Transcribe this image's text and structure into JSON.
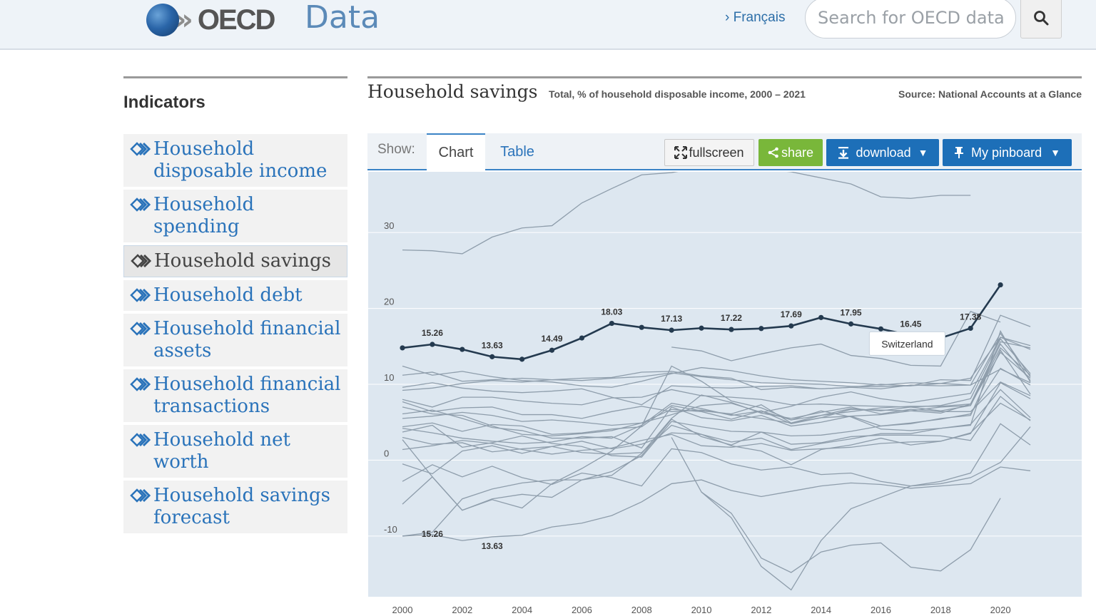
{
  "header": {
    "logo_text": "OECD",
    "section_title": "Data",
    "language_link": "› Français",
    "search_placeholder": "Search for OECD data"
  },
  "sidebar": {
    "heading": "Indicators",
    "items": [
      {
        "label": "Household disposable income",
        "active": false
      },
      {
        "label": "Household spending",
        "active": false
      },
      {
        "label": "Household savings",
        "active": true
      },
      {
        "label": "Household debt",
        "active": false
      },
      {
        "label": "Household financial assets",
        "active": false
      },
      {
        "label": "Household financial transactions",
        "active": false
      },
      {
        "label": "Household net worth",
        "active": false
      },
      {
        "label": "Household savings forecast",
        "active": false
      }
    ]
  },
  "main": {
    "title": "Household savings",
    "subtitle": "Total, % of household disposable income, 2000 – 2021",
    "source": "Source: National Accounts at a Glance",
    "toolbar": {
      "show_label": "Show:",
      "tabs": [
        {
          "label": "Chart",
          "active": true
        },
        {
          "label": "Table",
          "active": false
        }
      ],
      "fullscreen_label": "fullscreen",
      "share_label": "share",
      "download_label": "download",
      "pinboard_label": "My pinboard"
    },
    "tooltip": "Switzerland"
  },
  "colors": {
    "accent": "#1d6fb8",
    "share_green": "#79b73a",
    "chart_background": "#dde7f0",
    "highlight_line": "#243a4f",
    "background_lines": "#8e9dab"
  },
  "chart_data": {
    "type": "line",
    "ylim": [
      -18,
      38
    ],
    "xlim": [
      2000,
      2021
    ],
    "x_ticks": [
      2000,
      2002,
      2004,
      2006,
      2008,
      2010,
      2012,
      2014,
      2016,
      2018,
      2020
    ],
    "y_ticks": [
      -10,
      0,
      10,
      20,
      30
    ],
    "grid": true,
    "highlight": {
      "name": "Switzerland",
      "x": [
        2000,
        2001,
        2002,
        2003,
        2004,
        2005,
        2006,
        2007,
        2008,
        2009,
        2010,
        2011,
        2012,
        2013,
        2014,
        2015,
        2016,
        2017,
        2018,
        2019,
        2020
      ],
      "values": [
        14.8,
        15.26,
        14.6,
        13.63,
        13.3,
        14.49,
        16.1,
        18.03,
        17.5,
        17.13,
        17.4,
        17.22,
        17.35,
        17.69,
        18.8,
        17.95,
        17.3,
        16.45,
        16.1,
        17.38,
        23.1
      ],
      "labels": [
        {
          "x": 2001,
          "text": "15.26"
        },
        {
          "x": 2003,
          "text": "13.63"
        },
        {
          "x": 2005,
          "text": "14.49"
        },
        {
          "x": 2007,
          "text": "18.03"
        },
        {
          "x": 2009,
          "text": "17.13"
        },
        {
          "x": 2011,
          "text": "17.22"
        },
        {
          "x": 2013,
          "text": "17.69"
        },
        {
          "x": 2015,
          "text": "17.95"
        },
        {
          "x": 2017,
          "text": "16.45"
        },
        {
          "x": 2019,
          "text": "17.38"
        }
      ],
      "extra_labels": [
        {
          "x": 2001,
          "y": -10.1,
          "text": "15.26"
        },
        {
          "x": 2003,
          "y": -11.7,
          "text": "13.63"
        }
      ]
    },
    "series": [
      {
        "x_start": 2000,
        "values": [
          27.7,
          27.6,
          27.2,
          29.4,
          30.6,
          30.9,
          33.9,
          35.8,
          37.6,
          37.9,
          38.6,
          38.2,
          38.4,
          38.0,
          37.2,
          36.4,
          34.7,
          34.5,
          34.9,
          34.9
        ]
      },
      {
        "x_start": 2000,
        "values": [
          4.2,
          3.6,
          2.9,
          2.5,
          2.2,
          2.4,
          3.1,
          2.9,
          4.6,
          7.5,
          6.8,
          5.9,
          6.5,
          5.3,
          5.9,
          6.4,
          6.9,
          7.1,
          7.1,
          7.4,
          15.6,
          14.8
        ]
      },
      {
        "x_start": 2000,
        "values": [
          5.5,
          5.8,
          6.3,
          5.9,
          5.1,
          5.3,
          5.0,
          4.6,
          4.9,
          6.0,
          7.2,
          7.5,
          6.3,
          7.1,
          8.3,
          9.0,
          8.1,
          7.6,
          8.2,
          8.8,
          16.2,
          14.6
        ]
      },
      {
        "x_start": 2000,
        "values": [
          9.2,
          9.5,
          10.1,
          10.5,
          10.3,
          10.6,
          10.5,
          10.8,
          11.0,
          11.5,
          11.0,
          10.6,
          10.2,
          10.1,
          10.0,
          9.7,
          9.7,
          9.8,
          10.6,
          10.5,
          19.1,
          17.6
        ]
      },
      {
        "x_start": 2000,
        "values": [
          11.2,
          11.6,
          10.4,
          10.6,
          10.8,
          10.6,
          10.8,
          10.9,
          11.6,
          11.7,
          11.1,
          10.8,
          9.3,
          9.6,
          9.4,
          9.6,
          10.0,
          9.8,
          10.1,
          10.8,
          16.2,
          15.1
        ]
      },
      {
        "x_start": 2000,
        "values": [
          7.7,
          6.4,
          6.9,
          7.0,
          6.0,
          6.0,
          5.5,
          6.4,
          7.1,
          6.4,
          6.6,
          6.0,
          5.5,
          4.9,
          5.6,
          6.7,
          6.6,
          6.5,
          7.0,
          7.2,
          14.8,
          11.2
        ]
      },
      {
        "x_start": 2000,
        "values": [
          8.0,
          7.0,
          8.3,
          8.3,
          7.8,
          7.5,
          7.3,
          8.2,
          8.3,
          9.3,
          8.5,
          8.3,
          8.0,
          7.3,
          7.4,
          7.2,
          7.1,
          7.0,
          6.5,
          7.2,
          15.3,
          10.5
        ]
      },
      {
        "x_start": 2000,
        "values": [
          3.0,
          2.1,
          2.3,
          1.1,
          1.5,
          1.8,
          2.5,
          1.5,
          2.1,
          3.6,
          3.4,
          2.4,
          2.9,
          1.4,
          2.2,
          2.8,
          3.5,
          3.5,
          4.2,
          4.7,
          9.3,
          5.6
        ]
      },
      {
        "x_start": 2000,
        "values": [
          -0.5,
          -1.8,
          1.2,
          1.9,
          0.9,
          1.8,
          1.0,
          0.8,
          1.0,
          4.6,
          3.4,
          1.9,
          1.2,
          -0.6,
          1.4,
          2.0,
          2.9,
          2.0,
          2.5,
          3.5,
          10.2,
          8.1
        ]
      },
      {
        "x_start": 2000,
        "values": [
          -5.8,
          -2.2,
          -6.6,
          -5.1,
          -4.5,
          -4.9,
          -2.6,
          -1.5,
          0.6,
          5.4,
          3.1,
          2.0,
          3.7,
          3.2,
          3.3,
          3.8,
          4.5,
          4.9,
          5.4,
          6.1,
          12.1,
          9.9
        ]
      },
      {
        "x_start": 2000,
        "values": [
          -2.8,
          -0.6,
          -2.2,
          -0.8,
          -2.3,
          -3.2,
          -1.7,
          -2.3,
          -3.4,
          1.5,
          1.0,
          -0.5,
          -1.3,
          -0.9,
          -1.9,
          -1.7,
          -2.8,
          -3.4,
          -2.8,
          -1.7,
          4.8,
          2.0
        ]
      },
      {
        "x_start": 2000,
        "values": [
          12.4,
          11.2,
          11.7,
          11.0,
          10.5,
          10.3,
          9.8,
          9.6,
          10.4,
          11.4,
          12.2,
          11.8,
          11.1,
          10.6,
          10.4,
          10.2,
          9.9,
          10.2,
          10.1,
          9.9,
          16.7,
          11.0
        ]
      },
      {
        "x_start": 2000,
        "values": [
          6.1,
          6.6,
          5.5,
          4.3,
          3.9,
          2.9,
          2.9,
          3.1,
          1.6,
          7.0,
          5.6,
          5.2,
          5.9,
          4.5,
          5.0,
          5.8,
          4.5,
          4.8,
          5.5,
          5.9,
          14.5,
          8.7
        ]
      },
      {
        "x_start": 2000,
        "values": [
          -10.0,
          -9.8,
          -10.6,
          -10.1,
          -9.9,
          -8.8,
          -8.3,
          -7.3,
          -5.5,
          -3.1,
          -2.6,
          -4.0,
          -4.8,
          -4.1,
          -3.4,
          -3.0,
          -3.2,
          -3.7,
          -3.4,
          -3.1,
          -0.9,
          -1.4
        ]
      },
      {
        "x_start": 2000,
        "values": [
          2.7,
          -2.2,
          -6.6,
          -5.2,
          -6.3,
          -3.1,
          -1.1,
          1.2,
          4.5,
          12.4,
          10.4,
          7.8,
          6.9,
          5.3,
          6.5,
          5.7,
          4.1,
          3.9,
          4.2,
          4.6,
          17.0,
          10.3
        ]
      },
      {
        "x_start": 2000,
        "values": [
          9.6,
          10.2,
          9.5,
          9.1,
          8.9,
          9.1,
          9.4,
          8.3,
          7.3,
          9.8,
          9.6,
          9.5,
          9.7,
          9.8,
          9.4,
          9.6,
          9.4,
          9.9,
          9.8,
          9.9,
          12.0,
          10.2
        ]
      },
      {
        "x_start": 2000,
        "values": [
          3.7,
          4.6,
          1.7,
          2.3,
          3.2,
          2.2,
          1.8,
          0.6,
          0.4,
          5.1,
          4.4,
          3.8,
          3.7,
          2.1,
          2.3,
          3.1,
          3.3,
          3.3,
          3.2,
          2.6,
          8.4,
          5.2
        ]
      },
      {
        "x_start": 2009,
        "values": [
          14.9,
          14.4,
          13.1,
          14.0,
          14.8,
          15.3,
          13.8,
          13.4,
          12.5,
          12.4,
          19.6,
          18.2
        ]
      },
      {
        "x_start": 2009,
        "values": [
          3.0,
          -4.2,
          -7.0,
          -12.9,
          -14.8,
          -12.1,
          -11.2,
          -10.9,
          -14.1,
          -14.6,
          -11.8,
          -5.0
        ]
      },
      {
        "x_start": 2010,
        "values": [
          -4.2,
          -7.6,
          -14.0,
          -17.1,
          -10.6,
          -6.4,
          -4.9,
          -3.4,
          -3.1,
          -2.3,
          -0.3,
          4.4
        ]
      },
      {
        "x_start": 2000,
        "values": [
          -10.0,
          -9.5,
          -5.1,
          -3.8,
          -3.0,
          -2.6,
          -2.6,
          -2.0,
          0.9,
          5.5,
          8.6,
          7.6,
          6.2,
          5.5,
          6.3,
          7.0,
          6.1,
          6.7,
          6.4,
          6.4,
          10.3,
          8.5
        ]
      },
      {
        "x_start": 2000,
        "values": [
          4.4,
          4.9,
          3.8,
          4.7,
          4.5,
          3.4,
          3.6,
          4.1,
          4.4,
          7.2,
          6.5,
          6.1,
          7.3,
          4.9,
          5.9,
          6.8,
          6.5,
          7.0,
          7.2,
          8.1,
          16.0,
          11.4
        ]
      },
      {
        "x_start": 2000,
        "values": [
          1.4,
          1.9,
          2.6,
          2.2,
          1.4,
          0.8,
          1.3,
          1.6,
          2.6,
          3.4,
          1.9,
          1.7,
          2.2,
          1.3,
          1.5,
          1.7,
          2.2,
          2.4,
          2.5,
          3.6,
          7.5,
          5.3
        ]
      },
      {
        "x_start": 2000,
        "values": [
          7.0,
          6.1,
          5.9,
          4.5,
          3.4,
          3.2,
          3.5,
          3.9,
          4.9,
          6.7,
          6.4,
          5.4,
          6.5,
          4.8,
          5.6,
          5.8,
          6.0,
          6.5,
          6.2,
          7.4,
          14.2,
          10.8
        ]
      }
    ]
  }
}
